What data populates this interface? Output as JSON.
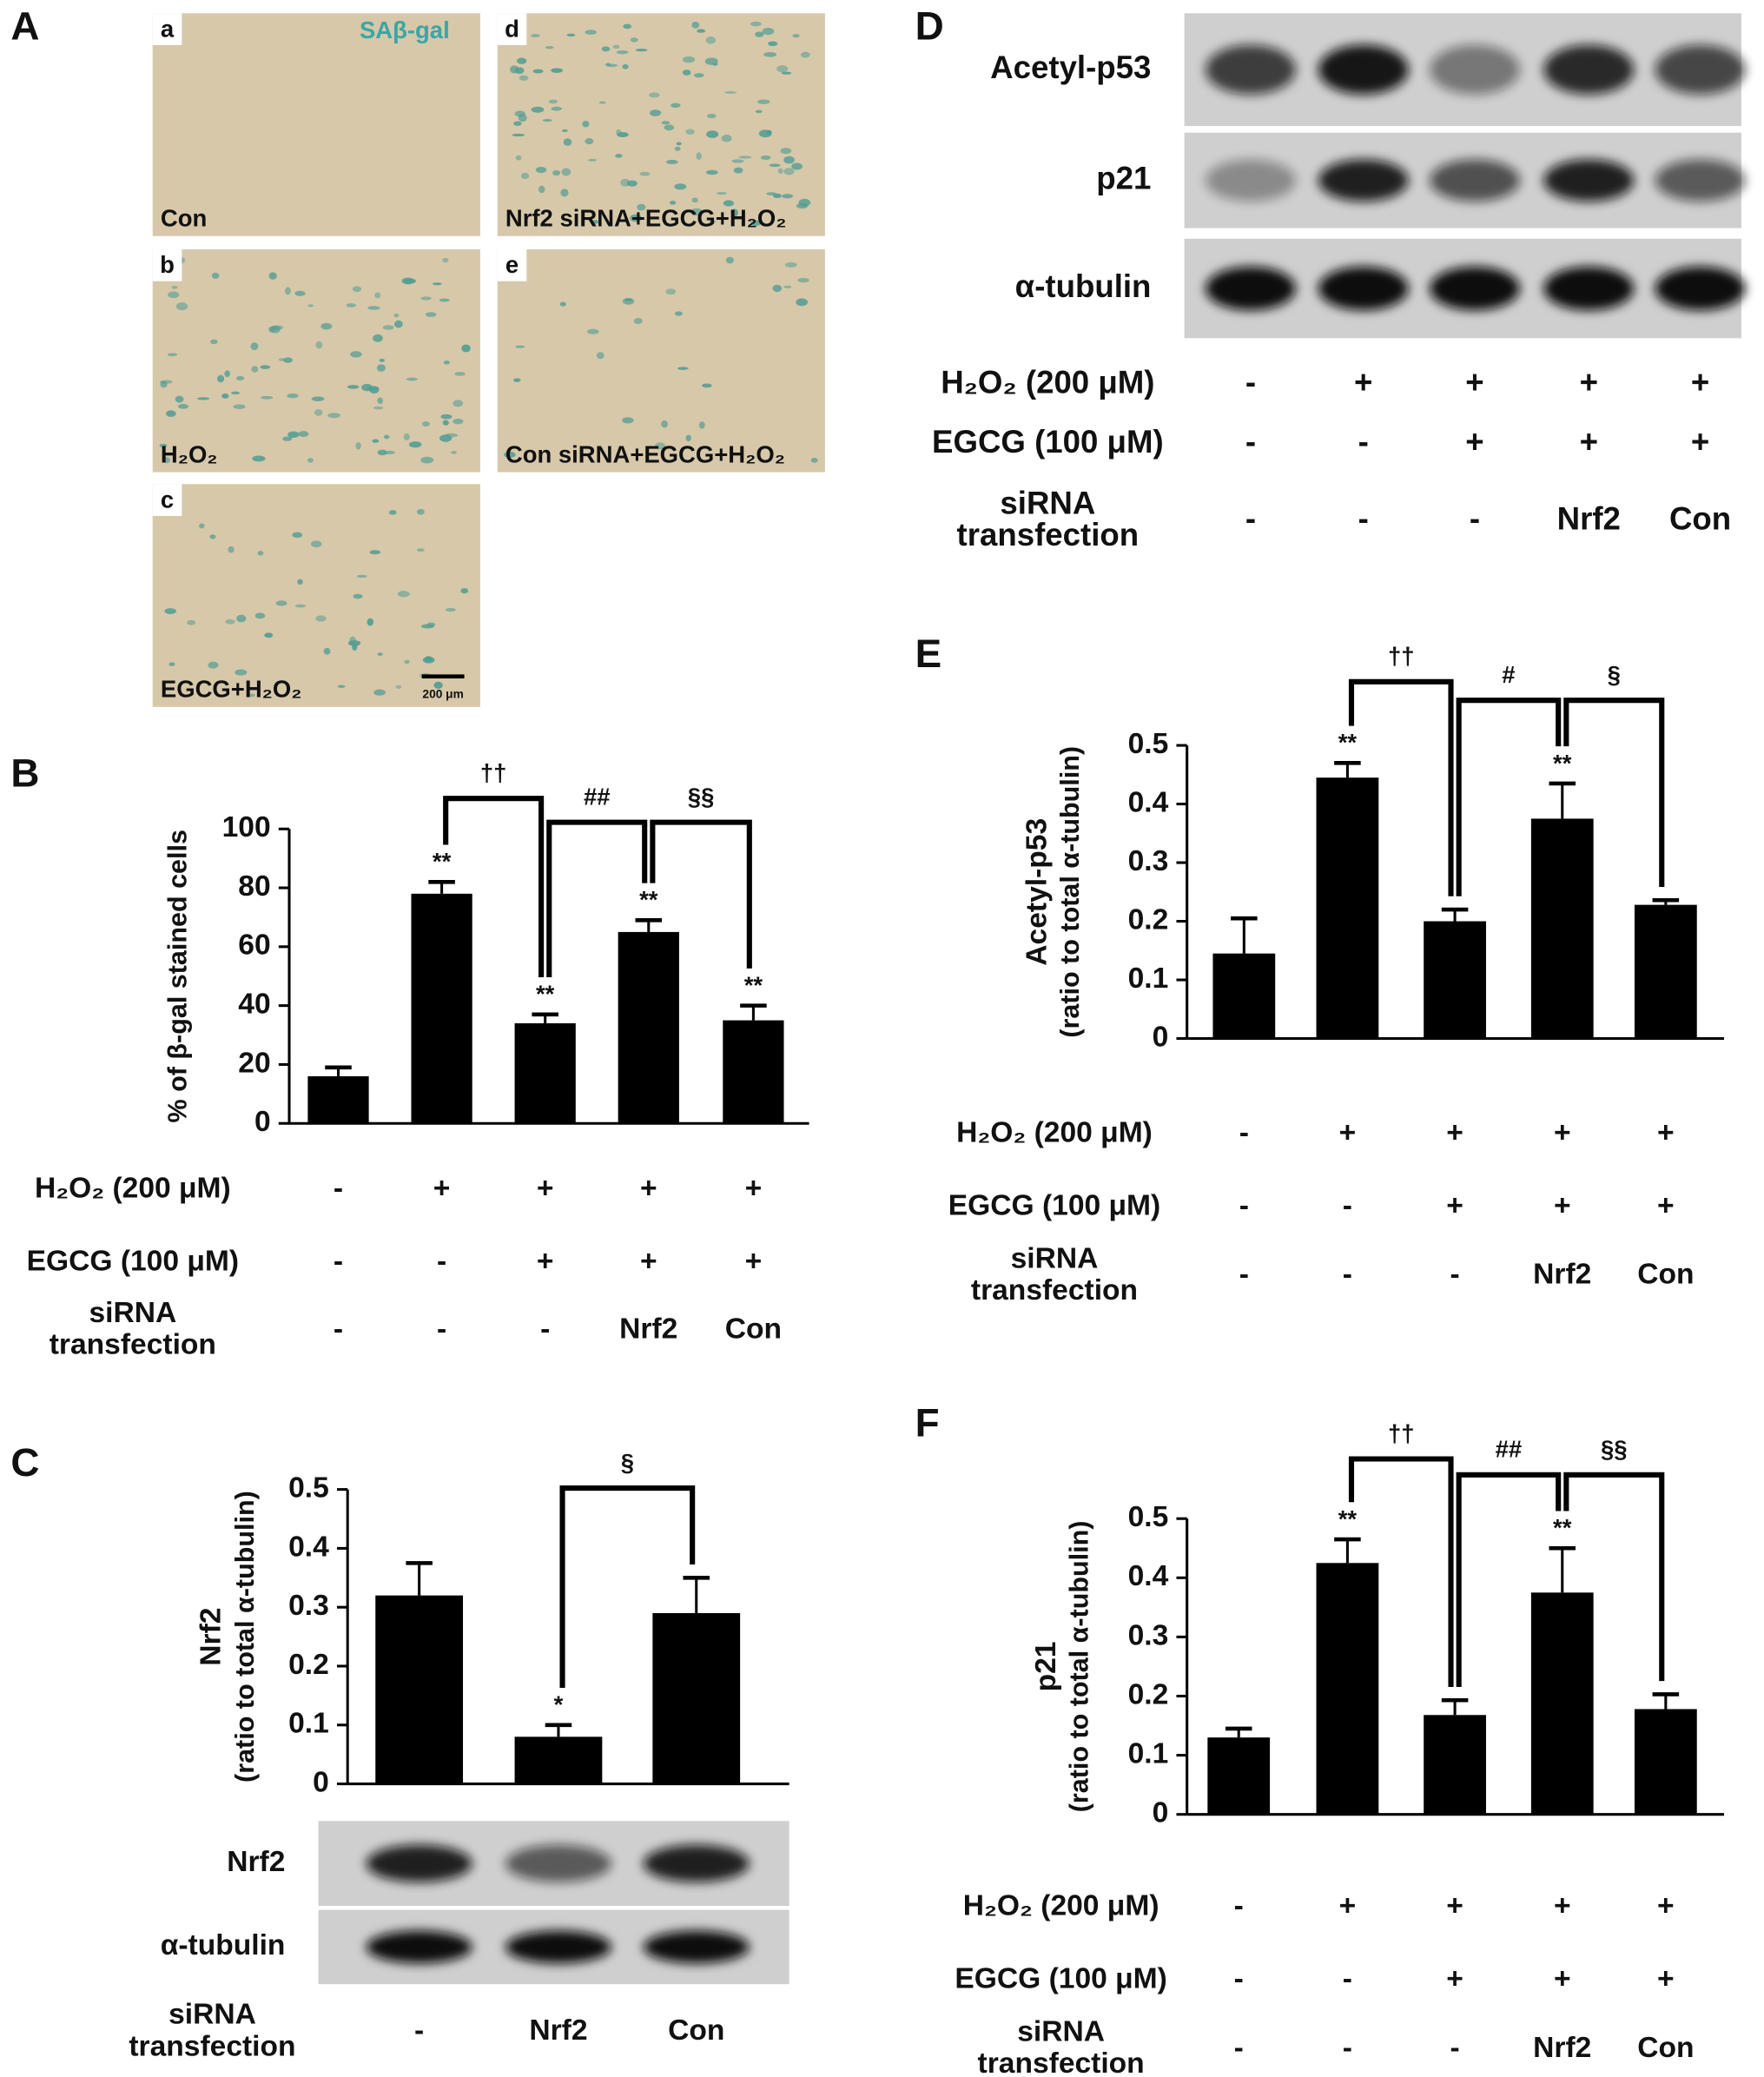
{
  "panel_labels": [
    "A",
    "B",
    "C",
    "D",
    "E",
    "F"
  ],
  "micrographs": {
    "stain_label": "SAβ-gal",
    "scale_bar": "200 μm",
    "panels": [
      {
        "letter": "a",
        "caption": "Con"
      },
      {
        "letter": "b",
        "caption": "H₂O₂"
      },
      {
        "letter": "c",
        "caption": "EGCG+H₂O₂"
      },
      {
        "letter": "d",
        "caption": "Nrf2 siRNA+EGCG+H₂O₂"
      },
      {
        "letter": "e",
        "caption": "Con siRNA+EGCG+H₂O₂"
      }
    ]
  },
  "blot_D": {
    "rows": [
      "Acetyl-p53",
      "p21",
      "α-tubulin"
    ],
    "conditions": [
      {
        "label": "H₂O₂ (200 μM)",
        "values": [
          "-",
          "+",
          "+",
          "+",
          "+"
        ]
      },
      {
        "label": "EGCG (100 μM)",
        "values": [
          "-",
          "-",
          "+",
          "+",
          "+"
        ]
      },
      {
        "label": [
          "siRNA",
          "transfection"
        ],
        "values": [
          "-",
          "-",
          "-",
          "Nrf2",
          "Con"
        ]
      }
    ]
  },
  "chart_data": [
    {
      "type": "bar",
      "ylabel": [
        "% of β-gal stained cells"
      ],
      "color": "#000000",
      "values": [
        16,
        78,
        34,
        65,
        35
      ],
      "errors": [
        3,
        4,
        3,
        4,
        5
      ],
      "value_annotations": [
        null,
        "**",
        "**",
        "**",
        "**"
      ],
      "brackets": [
        "††",
        "##",
        "§§"
      ],
      "ylim": [
        0,
        100
      ],
      "yticks": [
        0,
        20,
        40,
        60,
        80,
        100
      ],
      "conditions": [
        {
          "label": "H₂O₂ (200 μM)",
          "values": [
            "-",
            "+",
            "+",
            "+",
            "+"
          ]
        },
        {
          "label": "EGCG (100 μM)",
          "values": [
            "-",
            "-",
            "+",
            "+",
            "+"
          ]
        },
        {
          "label": [
            "siRNA",
            "transfection"
          ],
          "values": [
            "-",
            "-",
            "-",
            "Nrf2",
            "Con"
          ]
        }
      ]
    },
    {
      "type": "bar",
      "ylabel": [
        "Nrf2",
        "(ratio to total α-tubulin)"
      ],
      "color": "#000000",
      "values": [
        0.32,
        0.08,
        0.29
      ],
      "errors": [
        0.055,
        0.02,
        0.06
      ],
      "value_annotations": [
        null,
        "*",
        null
      ],
      "brackets": [
        "§"
      ],
      "ylim": [
        0,
        0.5
      ],
      "yticks": [
        0,
        0.1,
        0.2,
        0.3,
        0.4,
        0.5
      ],
      "blot_rows": [
        "Nrf2",
        "α-tubulin"
      ],
      "conditions": [
        {
          "label": [
            "siRNA",
            "transfection"
          ],
          "values": [
            "-",
            "Nrf2",
            "Con"
          ]
        }
      ]
    },
    {
      "type": "bar",
      "ylabel": [
        "Acetyl-p53",
        "(ratio to total α-tubulin)"
      ],
      "color": "#000000",
      "values": [
        0.145,
        0.445,
        0.2,
        0.375,
        0.228
      ],
      "errors": [
        0.06,
        0.025,
        0.02,
        0.06,
        0.008
      ],
      "value_annotations": [
        null,
        "**",
        null,
        "**",
        null
      ],
      "brackets": [
        "††",
        "#",
        "§"
      ],
      "ylim": [
        0,
        0.5
      ],
      "yticks": [
        0,
        0.1,
        0.2,
        0.3,
        0.4,
        0.5
      ],
      "conditions": [
        {
          "label": "H₂O₂ (200 μM)",
          "values": [
            "-",
            "+",
            "+",
            "+",
            "+"
          ]
        },
        {
          "label": "EGCG (100 μM)",
          "values": [
            "-",
            "-",
            "+",
            "+",
            "+"
          ]
        },
        {
          "label": [
            "siRNA",
            "transfection"
          ],
          "values": [
            "-",
            "-",
            "-",
            "Nrf2",
            "Con"
          ]
        }
      ]
    },
    {
      "type": "bar",
      "ylabel": [
        "p21",
        "(ratio to total α-tubulin)"
      ],
      "color": "#000000",
      "values": [
        0.13,
        0.425,
        0.168,
        0.375,
        0.178
      ],
      "errors": [
        0.015,
        0.04,
        0.025,
        0.075,
        0.025
      ],
      "value_annotations": [
        null,
        "**",
        null,
        "**",
        null
      ],
      "brackets": [
        "††",
        "##",
        "§§"
      ],
      "ylim": [
        0,
        0.5
      ],
      "yticks": [
        0,
        0.1,
        0.2,
        0.3,
        0.4,
        0.5
      ],
      "conditions": [
        {
          "label": "H₂O₂ (200 μM)",
          "values": [
            "-",
            "+",
            "+",
            "+",
            "+"
          ]
        },
        {
          "label": "EGCG (100 μM)",
          "values": [
            "-",
            "-",
            "+",
            "+",
            "+"
          ]
        },
        {
          "label": [
            "siRNA",
            "transfection"
          ],
          "values": [
            "-",
            "-",
            "-",
            "Nrf2",
            "Con"
          ]
        }
      ]
    }
  ]
}
